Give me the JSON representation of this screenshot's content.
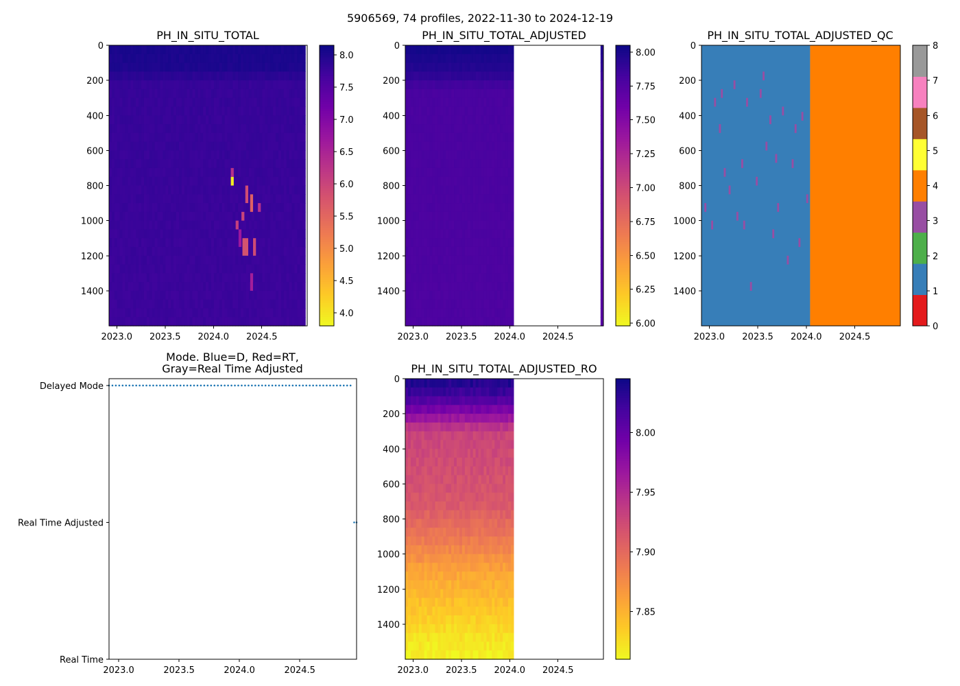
{
  "suptitle": "5906569, 74 profiles, 2022-11-30 to 2024-12-19",
  "colors": {
    "plasma_r": [
      "#0d0887",
      "#46039f",
      "#7201a8",
      "#9c179e",
      "#bd3786",
      "#d8576b",
      "#ed7953",
      "#fb9f3a",
      "#fdca26",
      "#f0f921"
    ],
    "qc": [
      "#e41a1c",
      "#377eb8",
      "#4daf4a",
      "#984ea3",
      "#ff7f00",
      "#ffff33",
      "#a65628",
      "#f781bf",
      "#999999"
    ],
    "mode_dot": "#1f77b4"
  },
  "chart_data": [
    {
      "id": "ph_total",
      "type": "heatmap",
      "title": "PH_IN_SITU_TOTAL",
      "xticks": [
        "2023.0",
        "2023.5",
        "2024.0",
        "2024.5"
      ],
      "xtick_values": [
        2023.0,
        2023.5,
        2024.0,
        2024.5
      ],
      "xlim": [
        2022.92,
        2024.97
      ],
      "yticks": [
        "0",
        "200",
        "400",
        "600",
        "800",
        "1000",
        "1200",
        "1400"
      ],
      "ytick_values": [
        0,
        200,
        400,
        600,
        800,
        1000,
        1200,
        1400
      ],
      "ylim": [
        1600,
        0
      ],
      "colorbar": {
        "range": [
          3.8,
          8.15
        ],
        "ticks": [
          "4.0",
          "4.5",
          "5.0",
          "5.5",
          "6.0",
          "6.5",
          "7.0",
          "7.5",
          "8.0"
        ],
        "tick_values": [
          4.0,
          4.5,
          5.0,
          5.5,
          6.0,
          6.5,
          7.0,
          7.5,
          8.0
        ]
      },
      "data_extent": [
        2022.92,
        2024.95
      ],
      "depth_profile": [
        [
          0,
          8.05
        ],
        [
          150,
          8.0
        ],
        [
          200,
          7.8
        ],
        [
          1600,
          7.75
        ]
      ],
      "anomalies": [
        {
          "t0": 2024.18,
          "t1": 2024.21,
          "d0": 750,
          "d1": 800,
          "value": 3.9
        },
        {
          "t0": 2024.18,
          "t1": 2024.21,
          "d0": 700,
          "d1": 750,
          "value": 6.3
        },
        {
          "t0": 2024.33,
          "t1": 2024.36,
          "d0": 800,
          "d1": 900,
          "value": 5.9
        },
        {
          "t0": 2024.38,
          "t1": 2024.41,
          "d0": 850,
          "d1": 950,
          "value": 5.6
        },
        {
          "t0": 2024.29,
          "t1": 2024.32,
          "d0": 950,
          "d1": 1000,
          "value": 6.0
        },
        {
          "t0": 2024.23,
          "t1": 2024.26,
          "d0": 1000,
          "d1": 1050,
          "value": 6.1
        },
        {
          "t0": 2024.3,
          "t1": 2024.36,
          "d0": 1100,
          "d1": 1200,
          "value": 5.8
        },
        {
          "t0": 2024.41,
          "t1": 2024.44,
          "d0": 1100,
          "d1": 1200,
          "value": 5.9
        },
        {
          "t0": 2024.38,
          "t1": 2024.41,
          "d0": 1300,
          "d1": 1400,
          "value": 6.6
        },
        {
          "t0": 2024.46,
          "t1": 2024.49,
          "d0": 900,
          "d1": 950,
          "value": 6.3
        },
        {
          "t0": 2024.26,
          "t1": 2024.29,
          "d0": 1050,
          "d1": 1150,
          "value": 6.7
        }
      ]
    },
    {
      "id": "ph_adjusted",
      "type": "heatmap",
      "title": "PH_IN_SITU_TOTAL_ADJUSTED",
      "xticks": [
        "2023.0",
        "2023.5",
        "2024.0",
        "2024.5"
      ],
      "xtick_values": [
        2023.0,
        2023.5,
        2024.0,
        2024.5
      ],
      "xlim": [
        2022.92,
        2024.97
      ],
      "yticks": [
        "0",
        "200",
        "400",
        "600",
        "800",
        "1000",
        "1200",
        "1400"
      ],
      "ytick_values": [
        0,
        200,
        400,
        600,
        800,
        1000,
        1200,
        1400
      ],
      "ylim": [
        1600,
        0
      ],
      "colorbar": {
        "range": [
          5.98,
          8.05
        ],
        "ticks": [
          "6.00",
          "6.25",
          "6.50",
          "6.75",
          "7.00",
          "7.25",
          "7.50",
          "7.75",
          "8.00"
        ],
        "tick_values": [
          6.0,
          6.25,
          6.5,
          6.75,
          7.0,
          7.25,
          7.5,
          7.75,
          8.0
        ]
      },
      "data_extent": [
        2022.92,
        2024.04
      ],
      "trailing_extent": [
        2024.94,
        2024.97
      ],
      "depth_profile": [
        [
          0,
          8.03
        ],
        [
          150,
          7.95
        ],
        [
          250,
          7.8
        ],
        [
          1600,
          7.78
        ]
      ]
    },
    {
      "id": "ph_adjusted_qc",
      "type": "heatmap",
      "title": "PH_IN_SITU_TOTAL_ADJUSTED_QC",
      "xticks": [
        "2023.0",
        "2023.5",
        "2024.0",
        "2024.5"
      ],
      "xtick_values": [
        2023.0,
        2023.5,
        2024.0,
        2024.5
      ],
      "xlim": [
        2022.92,
        2024.97
      ],
      "yticks": [
        "0",
        "200",
        "400",
        "600",
        "800",
        "1000",
        "1200",
        "1400"
      ],
      "ytick_values": [
        0,
        200,
        400,
        600,
        800,
        1000,
        1200,
        1400
      ],
      "ylim": [
        1600,
        0
      ],
      "colorbar": {
        "range": [
          0,
          8
        ],
        "ticks": [
          "0",
          "1",
          "2",
          "3",
          "4",
          "5",
          "6",
          "7",
          "8"
        ],
        "tick_values": [
          0,
          1,
          2,
          3,
          4,
          5,
          6,
          7,
          8
        ]
      },
      "segments": [
        {
          "t0": 2022.92,
          "t1": 2024.04,
          "qc": 1
        },
        {
          "t0": 2024.04,
          "t1": 2024.97,
          "qc": 4
        }
      ],
      "flag3_cells": [
        [
          2023.05,
          300
        ],
        [
          2023.12,
          250
        ],
        [
          2023.25,
          200
        ],
        [
          2023.38,
          300
        ],
        [
          2023.52,
          250
        ],
        [
          2023.62,
          400
        ],
        [
          2023.75,
          350
        ],
        [
          2023.88,
          450
        ],
        [
          2023.15,
          700
        ],
        [
          2023.33,
          650
        ],
        [
          2023.48,
          750
        ],
        [
          2022.95,
          900
        ],
        [
          2023.28,
          950
        ],
        [
          2023.65,
          1050
        ],
        [
          2023.02,
          1000
        ],
        [
          2023.8,
          1200
        ],
        [
          2023.42,
          1350
        ],
        [
          2023.92,
          1100
        ],
        [
          2023.58,
          550
        ],
        [
          2023.2,
          800
        ],
        [
          2023.7,
          900
        ],
        [
          2023.1,
          450
        ],
        [
          2023.85,
          650
        ],
        [
          2023.35,
          1000
        ],
        [
          2024.0,
          850
        ],
        [
          2023.55,
          150
        ],
        [
          2023.95,
          380
        ],
        [
          2023.68,
          620
        ]
      ]
    },
    {
      "id": "mode",
      "type": "scatter",
      "title": "Mode. Blue=D, Red=RT,",
      "title_line2": "Gray=Real Time Adjusted",
      "xticks": [
        "2023.0",
        "2023.5",
        "2024.0",
        "2024.5"
      ],
      "xtick_values": [
        2023.0,
        2023.5,
        2024.0,
        2024.5
      ],
      "xlim": [
        2022.92,
        2024.97
      ],
      "yticks": [
        "Delayed Mode",
        "Real Time Adjusted",
        "Real Time"
      ],
      "ytick_values": [
        2,
        1,
        0
      ],
      "ylim": [
        0,
        2.05
      ],
      "series": [
        {
          "name": "Delayed Mode",
          "y": 2,
          "t_start": 2022.92,
          "t_end": 2024.92,
          "count": 72
        },
        {
          "name": "Real Time Adjusted",
          "y": 1,
          "t_start": 2024.95,
          "t_end": 2024.97,
          "count": 2
        }
      ]
    },
    {
      "id": "ph_adjusted_ro",
      "type": "heatmap",
      "title": "PH_IN_SITU_TOTAL_ADJUSTED_RO",
      "xticks": [
        "2023.0",
        "2023.5",
        "2024.0",
        "2024.5"
      ],
      "xtick_values": [
        2023.0,
        2023.5,
        2024.0,
        2024.5
      ],
      "xlim": [
        2022.92,
        2024.97
      ],
      "yticks": [
        "0",
        "200",
        "400",
        "600",
        "800",
        "1000",
        "1200",
        "1400"
      ],
      "ytick_values": [
        0,
        200,
        400,
        600,
        800,
        1000,
        1200,
        1400
      ],
      "ylim": [
        1600,
        0
      ],
      "colorbar": {
        "range": [
          7.81,
          8.045
        ],
        "ticks": [
          "7.85",
          "7.90",
          "7.95",
          "8.00"
        ],
        "tick_values": [
          7.85,
          7.9,
          7.95,
          8.0
        ]
      },
      "data_extent": [
        2022.92,
        2024.04
      ],
      "depth_profile": [
        [
          0,
          8.04
        ],
        [
          100,
          8.02
        ],
        [
          200,
          7.98
        ],
        [
          300,
          7.93
        ],
        [
          700,
          7.915
        ],
        [
          900,
          7.89
        ],
        [
          1100,
          7.86
        ],
        [
          1300,
          7.84
        ],
        [
          1500,
          7.82
        ],
        [
          1600,
          7.815
        ]
      ]
    }
  ]
}
